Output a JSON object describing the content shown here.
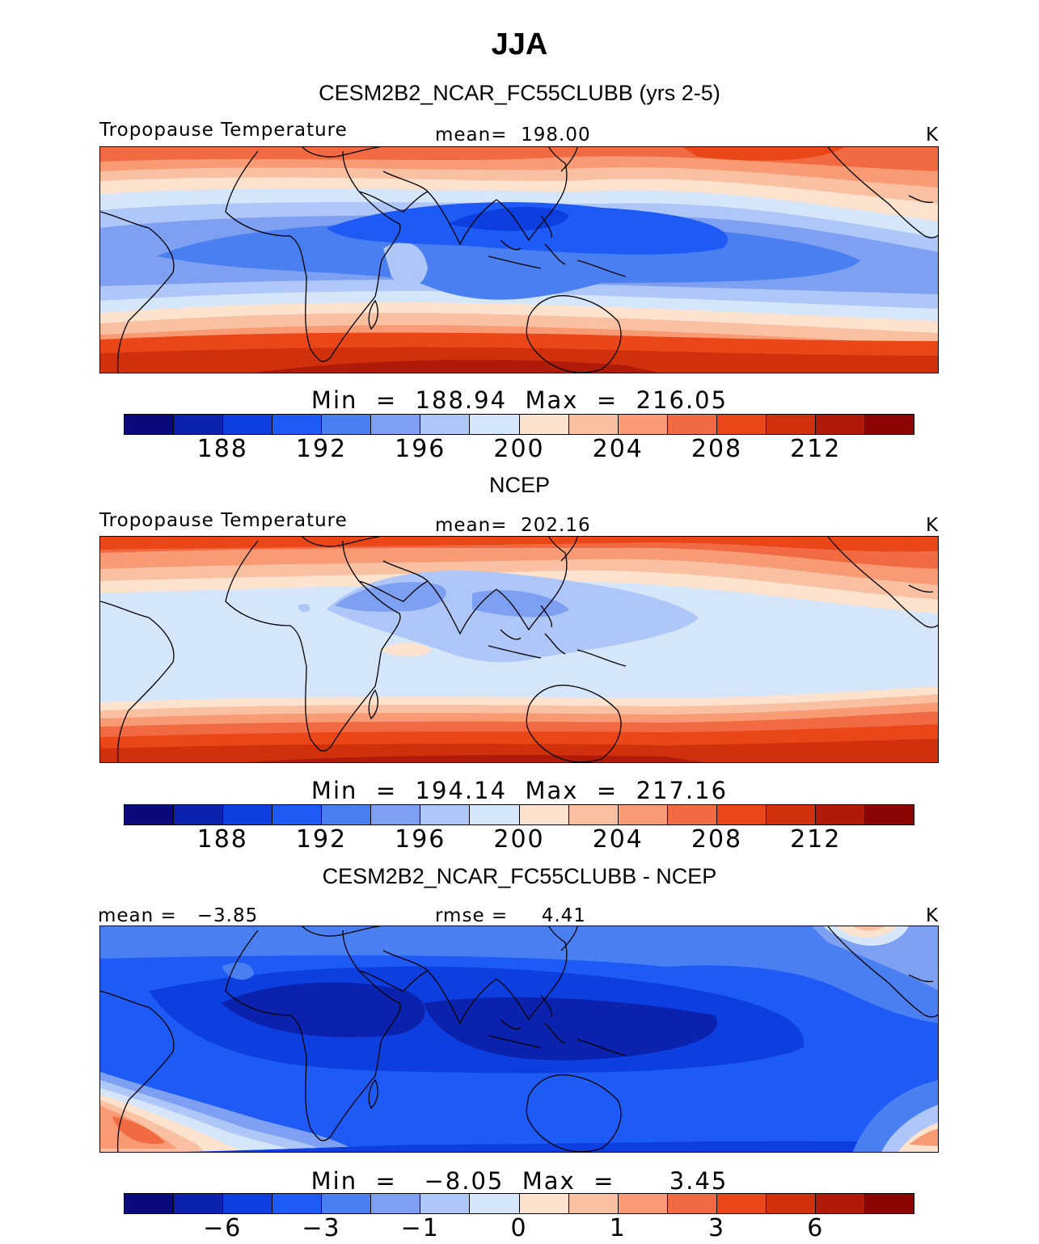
{
  "figure": {
    "title": "JJA"
  },
  "palette": [
    "#0a0a7c",
    "#0a22ad",
    "#0d3fe0",
    "#1e5af5",
    "#4a7ff2",
    "#7da0f2",
    "#aec6f8",
    "#d5e6fb",
    "#fde2cd",
    "#f9c0a2",
    "#f89b75",
    "#f26a42",
    "#eb4618",
    "#d1300c",
    "#b01a08",
    "#8a0504"
  ],
  "chart_data": [
    {
      "type": "heatmap",
      "panel": "model",
      "title": "CESM2B2_NCAR_FC55CLUBB (yrs 2-5)",
      "left_label": "Tropopause Temperature",
      "center_label": "mean=  198.00",
      "units": "K",
      "stats": "Min  =  188.94  Max  =  216.05",
      "min": 188.94,
      "max": 216.05,
      "mean": 198.0,
      "colorbar_ticks": [
        "188",
        "192",
        "196",
        "200",
        "204",
        "208",
        "212"
      ],
      "colorbar_levels": [
        186,
        188,
        190,
        192,
        194,
        196,
        198,
        200,
        202,
        204,
        206,
        208,
        210,
        212,
        214
      ]
    },
    {
      "type": "heatmap",
      "panel": "obs",
      "title": "NCEP",
      "left_label": "Tropopause Temperature",
      "center_label": "mean=  202.16",
      "units": "K",
      "stats": "Min  =  194.14  Max  =  217.16",
      "min": 194.14,
      "max": 217.16,
      "mean": 202.16,
      "colorbar_ticks": [
        "188",
        "192",
        "196",
        "200",
        "204",
        "208",
        "212"
      ],
      "colorbar_levels": [
        186,
        188,
        190,
        192,
        194,
        196,
        198,
        200,
        202,
        204,
        206,
        208,
        210,
        212,
        214
      ]
    },
    {
      "type": "heatmap",
      "panel": "difference",
      "title": "CESM2B2_NCAR_FC55CLUBB - NCEP",
      "left_label": "mean =   −3.85",
      "center_label": "rmse =     4.41",
      "units": "K",
      "stats": "Min  =   −8.05  Max  =      3.45",
      "min": -8.05,
      "max": 3.45,
      "mean": -3.85,
      "rmse": 4.41,
      "colorbar_ticks": [
        "−6",
        "−3",
        "−1",
        "0",
        "1",
        "3",
        "6"
      ],
      "colorbar_levels": [
        -8,
        -6,
        -4,
        -3,
        -2,
        -1,
        -0.5,
        0,
        0.5,
        1,
        2,
        3,
        4,
        6,
        8
      ]
    }
  ]
}
